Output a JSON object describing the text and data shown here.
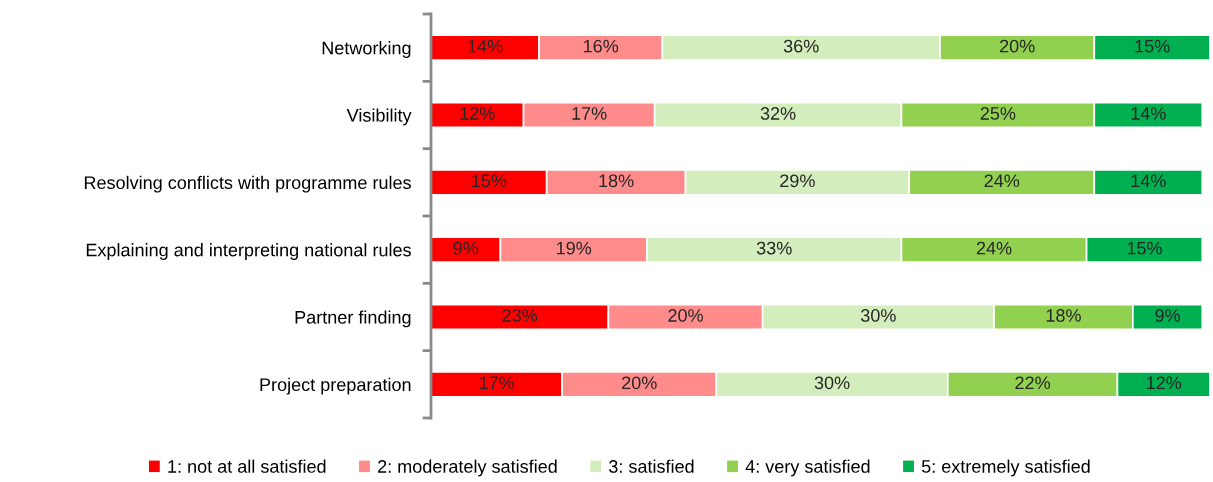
{
  "chart_data": {
    "type": "bar",
    "orientation": "horizontal",
    "stacked": true,
    "categories": [
      "Networking",
      "Visibility",
      "Resolving conflicts with programme rules",
      "Explaining and interpreting national rules",
      "Partner finding",
      "Project preparation"
    ],
    "series": [
      {
        "name": "1: not at all satisfied",
        "color": "#ff0000",
        "values": [
          14,
          12,
          15,
          9,
          23,
          17
        ],
        "value_labels": [
          "14%",
          "12%",
          "15%",
          "9%",
          "23%",
          "17%"
        ]
      },
      {
        "name": "2: moderately satisfied",
        "color": "#ff8b8b",
        "values": [
          16,
          17,
          18,
          19,
          20,
          20
        ],
        "value_labels": [
          "16%",
          "17%",
          "18%",
          "19%",
          "20%",
          "20%"
        ]
      },
      {
        "name": "3: satisfied",
        "color": "#d4edbc",
        "values": [
          36,
          32,
          29,
          33,
          30,
          30
        ],
        "value_labels": [
          "36%",
          "32%",
          "29%",
          "33%",
          "30%",
          "30%"
        ]
      },
      {
        "name": "4: very satisfied",
        "color": "#92d050",
        "values": [
          20,
          25,
          24,
          24,
          18,
          22
        ],
        "value_labels": [
          "20%",
          "25%",
          "24%",
          "24%",
          "18%",
          "22%"
        ]
      },
      {
        "name": "5: extremely satisfied",
        "color": "#00b050",
        "values": [
          15,
          14,
          14,
          15,
          9,
          12
        ],
        "value_labels": [
          "15%",
          "14%",
          "14%",
          "15%",
          "9%",
          "12%"
        ]
      }
    ],
    "xlim": [
      0,
      101
    ],
    "tick_labels": "y",
    "legend": "bottom",
    "grid": false
  }
}
